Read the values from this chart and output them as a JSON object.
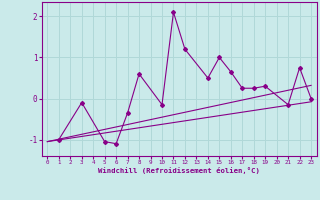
{
  "xlabel": "Windchill (Refroidissement éolien,°C)",
  "background_color": "#caeaea",
  "grid_color": "#b0d8d8",
  "line_color": "#880088",
  "xlim": [
    -0.5,
    23.5
  ],
  "ylim": [
    -1.4,
    2.35
  ],
  "x_data": [
    1,
    3,
    5,
    6,
    7,
    8,
    10,
    11,
    12,
    14,
    15,
    16,
    17,
    18,
    19,
    21,
    22,
    23
  ],
  "y_main": [
    -1.0,
    -0.1,
    -1.05,
    -1.1,
    -0.35,
    0.6,
    -0.15,
    2.1,
    1.2,
    0.5,
    1.0,
    0.65,
    0.25,
    0.25,
    0.3,
    -0.15,
    0.75,
    0.0
  ],
  "trend1_x": [
    0,
    23
  ],
  "trend1_y": [
    -1.05,
    -0.08
  ],
  "trend2_x": [
    0,
    23
  ],
  "trend2_y": [
    -1.05,
    0.32
  ],
  "yticks": [
    -1,
    0,
    1,
    2
  ],
  "xticks": [
    0,
    1,
    2,
    3,
    4,
    5,
    6,
    7,
    8,
    9,
    10,
    11,
    12,
    13,
    14,
    15,
    16,
    17,
    18,
    19,
    20,
    21,
    22,
    23
  ]
}
